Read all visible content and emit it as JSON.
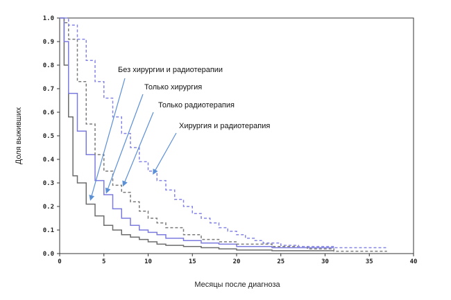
{
  "chart_data": {
    "type": "line",
    "xlabel": "Месяцы после диагноза",
    "ylabel": "Доля выживших",
    "xlim": [
      0,
      40
    ],
    "ylim": [
      0,
      1
    ],
    "xticks": [
      "0",
      "5",
      "10",
      "15",
      "20",
      "25",
      "30",
      "35",
      "40"
    ],
    "yticks": [
      "0.0",
      "0.1",
      "0.2",
      "0.3",
      "0.4",
      "0.5",
      "0.6",
      "0.7",
      "0.8",
      "0.9",
      "1.0"
    ],
    "grid": false,
    "legend": "none",
    "series": [
      {
        "key": "none",
        "color": "#6b6b6b",
        "dash": "solid",
        "x": [
          0,
          0.5,
          1,
          1.5,
          2,
          3,
          4,
          5,
          6,
          7,
          8,
          9,
          10,
          11,
          12,
          14,
          16,
          18,
          20,
          24,
          31
        ],
        "y": [
          1.0,
          0.8,
          0.58,
          0.33,
          0.3,
          0.21,
          0.16,
          0.12,
          0.1,
          0.08,
          0.07,
          0.06,
          0.05,
          0.04,
          0.035,
          0.03,
          0.025,
          0.02,
          0.015,
          0.012,
          0.012
        ]
      },
      {
        "key": "surgery",
        "color": "#7a7adf",
        "dash": "solid",
        "x": [
          0,
          0.5,
          1,
          2,
          3,
          4,
          5,
          6,
          7,
          8,
          9,
          10,
          11,
          12,
          14,
          16,
          18,
          20,
          24,
          31
        ],
        "y": [
          1.0,
          0.9,
          0.68,
          0.52,
          0.42,
          0.31,
          0.25,
          0.19,
          0.15,
          0.12,
          0.1,
          0.09,
          0.08,
          0.065,
          0.055,
          0.045,
          0.04,
          0.03,
          0.025,
          0.025
        ]
      },
      {
        "key": "radio",
        "color": "#7a7a7a",
        "dash": "dashed",
        "x": [
          0,
          0.5,
          1,
          2,
          3,
          4,
          5,
          6,
          7,
          8,
          9,
          10,
          11,
          12,
          14,
          16,
          18,
          20,
          24,
          28,
          31,
          37
        ],
        "y": [
          1.0,
          0.98,
          0.91,
          0.73,
          0.55,
          0.42,
          0.35,
          0.29,
          0.26,
          0.22,
          0.18,
          0.15,
          0.13,
          0.11,
          0.08,
          0.06,
          0.05,
          0.04,
          0.03,
          0.02,
          0.01,
          0.01
        ]
      },
      {
        "key": "both",
        "color": "#8585e6",
        "dash": "dashed",
        "x": [
          0,
          1,
          2,
          3,
          4,
          5,
          6,
          7,
          8,
          9,
          10,
          11,
          12,
          13,
          14,
          15,
          16,
          17,
          18,
          19,
          20,
          21,
          22,
          23,
          25,
          27,
          31,
          37
        ],
        "y": [
          1.0,
          0.97,
          0.91,
          0.82,
          0.73,
          0.66,
          0.58,
          0.51,
          0.45,
          0.39,
          0.35,
          0.31,
          0.27,
          0.23,
          0.2,
          0.17,
          0.15,
          0.13,
          0.11,
          0.095,
          0.08,
          0.065,
          0.055,
          0.045,
          0.035,
          0.03,
          0.025,
          0.025
        ]
      }
    ],
    "annotations": [
      {
        "key": "none",
        "text": "Без хирургии и радиотерапии",
        "pointX": 3.5,
        "pointY": 0.23
      },
      {
        "key": "surgery",
        "text": "Только хирургия",
        "pointX": 5.3,
        "pointY": 0.26
      },
      {
        "key": "radio",
        "text": "Только радиотерапия",
        "pointX": 7.2,
        "pointY": 0.29
      },
      {
        "key": "both",
        "text": "Хирургия и радиотерапия",
        "pointX": 10.6,
        "pointY": 0.34
      }
    ]
  }
}
